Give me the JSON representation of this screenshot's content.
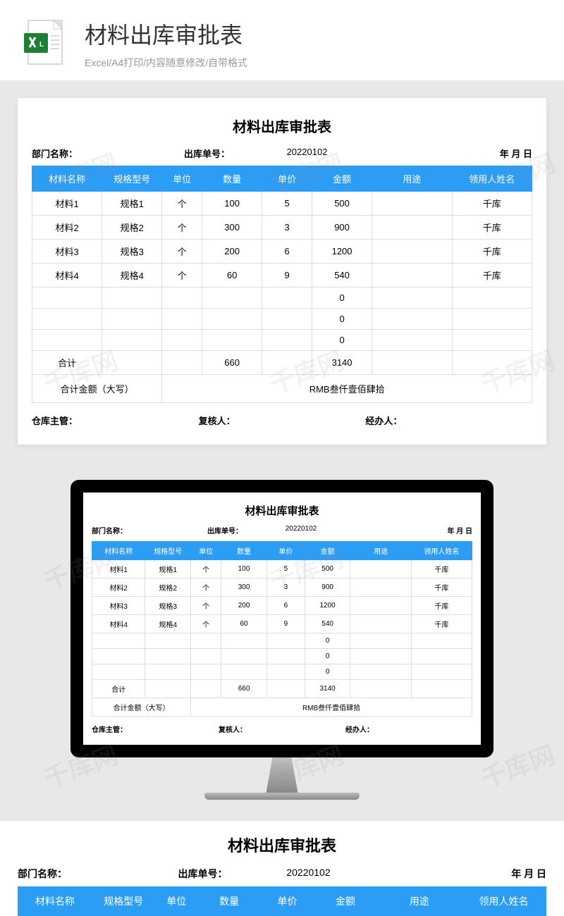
{
  "header": {
    "title": "材料出库审批表",
    "subtitle": "Excel/A4打印/内容随意修改/自带格式",
    "icon_colors": {
      "paper": "#ffffff",
      "fold": "#d0d0d0",
      "x_box": "#1e7e34",
      "border": "#cccccc"
    }
  },
  "form": {
    "title": "材料出库审批表",
    "meta": {
      "dept_label": "部门名称：",
      "order_label": "出库单号：",
      "order_number": "20220102",
      "date_label": "年  月  日"
    },
    "columns": [
      "材料名称",
      "规格型号",
      "单位",
      "数量",
      "单价",
      "金额",
      "用途",
      "领用人姓名"
    ],
    "col_widths": [
      "14%",
      "12%",
      "8%",
      "12%",
      "10%",
      "12%",
      "16%",
      "16%"
    ],
    "rows": [
      [
        "材料1",
        "规格1",
        "个",
        "100",
        "5",
        "500",
        "",
        "千库"
      ],
      [
        "材料2",
        "规格2",
        "个",
        "300",
        "3",
        "900",
        "",
        "千库"
      ],
      [
        "材料3",
        "规格3",
        "个",
        "200",
        "6",
        "1200",
        "",
        "千库"
      ],
      [
        "材料4",
        "规格4",
        "个",
        "60",
        "9",
        "540",
        "",
        "千库"
      ],
      [
        "",
        "",
        "",
        "",
        "",
        "0",
        "",
        ""
      ],
      [
        "",
        "",
        "",
        "",
        "",
        "0",
        "",
        ""
      ],
      [
        "",
        "",
        "",
        "",
        "",
        "0",
        "",
        ""
      ]
    ],
    "total_row": {
      "label": "合计",
      "qty": "660",
      "amount": "3140"
    },
    "total_cn": {
      "label": "合计金额（大写）",
      "value": "RMB叁仟壹佰肆拾"
    },
    "signatures": [
      "仓库主管：",
      "复核人：",
      "经办人："
    ]
  },
  "colors": {
    "header_bg": "#2c9df4",
    "header_text": "#ffffff",
    "border": "#dddddd",
    "page_bg": "#e8e8e8",
    "card_bg": "#ffffff"
  },
  "watermark_text": "千库网"
}
